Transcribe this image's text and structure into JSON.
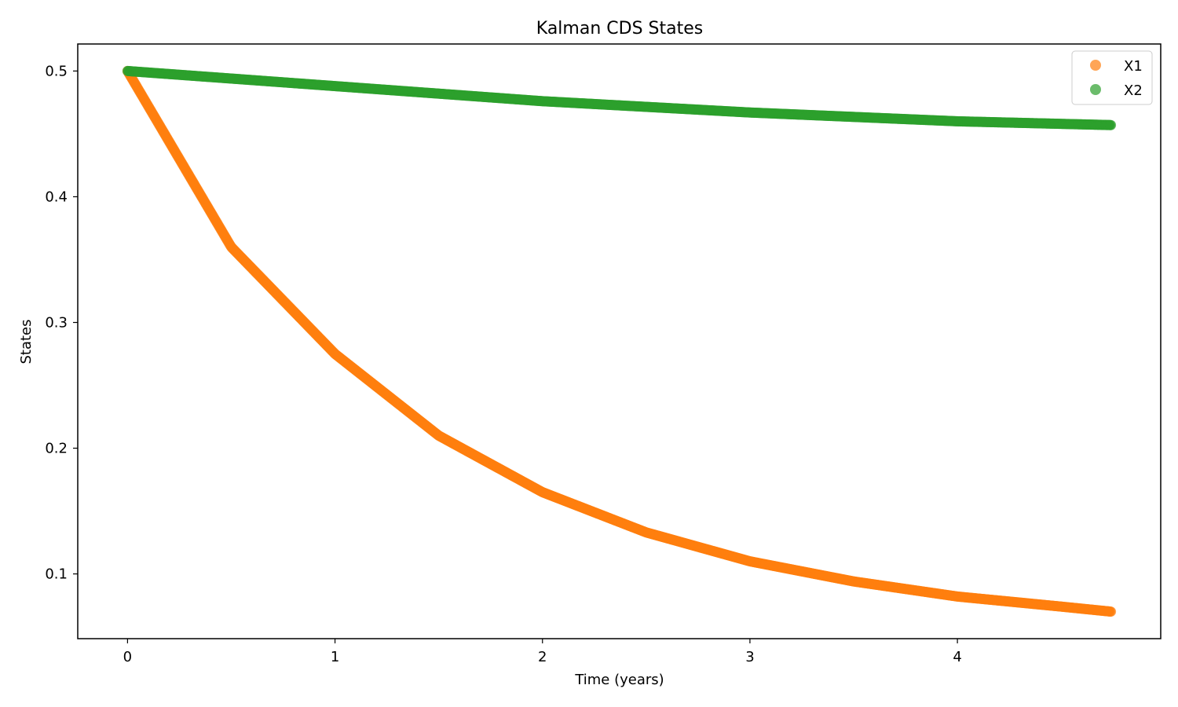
{
  "chart_data": {
    "type": "scatter",
    "title": "Kalman CDS States",
    "xlabel": "Time (years)",
    "ylabel": "States",
    "xlim": [
      -0.24,
      4.98
    ],
    "ylim": [
      0.0485,
      0.5215
    ],
    "x_ticks": [
      0,
      1,
      2,
      3,
      4
    ],
    "y_ticks": [
      0.1,
      0.2,
      0.3,
      0.4,
      0.5
    ],
    "x_tick_labels": [
      "0",
      "1",
      "2",
      "3",
      "4"
    ],
    "y_tick_labels": [
      "0.1",
      "0.2",
      "0.3",
      "0.4",
      "0.5"
    ],
    "grid": false,
    "legend_placement": "top-right",
    "x_start": 0,
    "x_end": 4.74,
    "num_points": 1200,
    "series": [
      {
        "name": "X1",
        "color": "#ff7f0e",
        "x": [
          0,
          0.5,
          1.0,
          1.5,
          2.0,
          2.5,
          3.0,
          3.5,
          4.0,
          4.5,
          4.74
        ],
        "y": [
          0.5,
          0.36,
          0.275,
          0.21,
          0.165,
          0.133,
          0.11,
          0.094,
          0.082,
          0.074,
          0.07
        ]
      },
      {
        "name": "X2",
        "color": "#2ca02c",
        "x": [
          0,
          1.0,
          2.0,
          3.0,
          4.0,
          4.74
        ],
        "y": [
          0.5,
          0.488,
          0.476,
          0.467,
          0.46,
          0.457
        ]
      }
    ]
  }
}
